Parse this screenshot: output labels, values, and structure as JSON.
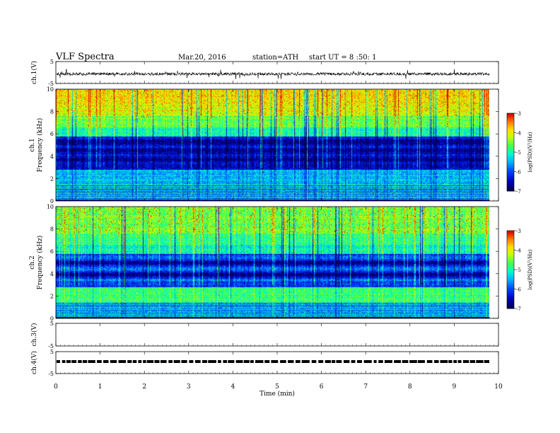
{
  "header": {
    "title": "VLF  Spectra",
    "date": "Mar.20, 2016",
    "station": "station=ATH",
    "start": "start  UT  =    8  :50: 1"
  },
  "chart_data": {
    "type": "heatmap",
    "x": {
      "label": "Time  (min)",
      "range": [
        0,
        10
      ],
      "ticks": [
        0,
        1,
        2,
        3,
        4,
        5,
        6,
        7,
        8,
        9,
        10
      ]
    },
    "panels": [
      {
        "name": "ch1-waveform",
        "type": "line",
        "ylabel": "ch.1(V)",
        "ylim": [
          -5,
          5
        ],
        "yticks": [
          "5",
          "-5"
        ]
      },
      {
        "name": "ch1-spectrogram",
        "type": "heatmap",
        "ylabel_top": "ch.1",
        "ylabel": "Frequency  (kHz)",
        "ylim": [
          0,
          10
        ],
        "yticks": [
          "0",
          "2",
          "4",
          "6",
          "8",
          "10"
        ],
        "colorbar": {
          "label": "log(PSD)(V²/Hz)",
          "range": [
            -7,
            -3
          ],
          "ticks": [
            "-3",
            "-4",
            "-5",
            "-6",
            "-7"
          ]
        }
      },
      {
        "name": "ch2-spectrogram",
        "type": "heatmap",
        "ylabel_top": "ch.2",
        "ylabel": "Frequency  (kHz)",
        "ylim": [
          0,
          10
        ],
        "yticks": [
          "0",
          "2",
          "4",
          "6",
          "8",
          "10"
        ],
        "colorbar": {
          "label": "log(PSD)(V²/Hz)",
          "range": [
            -7,
            -3
          ],
          "ticks": [
            "-3",
            "-4",
            "-5",
            "-6",
            "-7"
          ]
        }
      },
      {
        "name": "ch3-waveform",
        "type": "line",
        "ylabel": "ch.3(V)",
        "ylim": [
          -5,
          5
        ],
        "yticks": [
          "5",
          "-5"
        ]
      },
      {
        "name": "ch4-waveform",
        "type": "line",
        "ylabel": "ch.4(V)",
        "ylim": [
          -5,
          5
        ],
        "yticks": [
          "5",
          "-5"
        ]
      }
    ]
  }
}
